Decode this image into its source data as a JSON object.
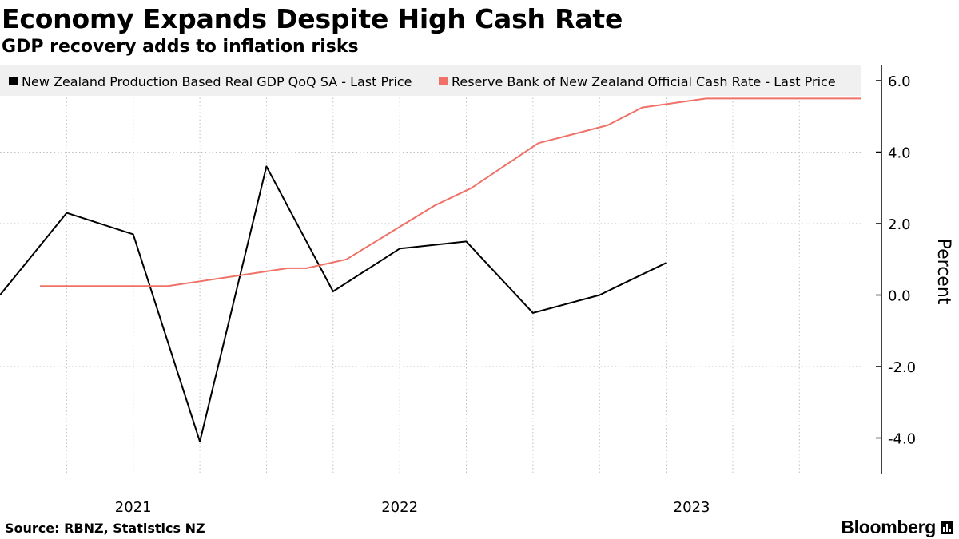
{
  "header": {
    "title": "Economy Expands Despite High Cash Rate",
    "subtitle": "GDP recovery adds to inflation risks"
  },
  "footer": {
    "source": "Source: RBNZ, Statistics NZ",
    "brand": "Bloomberg"
  },
  "colors": {
    "gdp": "#000000",
    "ocr": "#f07167",
    "grid": "#bfbfbf",
    "legend_bg": "#f0f0f0"
  },
  "chart_data": {
    "type": "line",
    "title": "Economy Expands Despite High Cash Rate",
    "subtitle": "GDP recovery adds to inflation risks",
    "ylabel": "Percent",
    "xlabel": "",
    "ylim": [
      -5,
      6.5
    ],
    "yticks": [
      6,
      4,
      2,
      0,
      -2,
      -4
    ],
    "ytick_labels": [
      "6.0",
      "4.0",
      "2.0",
      "0.0",
      "-2.0",
      "-4.0"
    ],
    "y_axis_side": "right",
    "x_range": [
      2020.5,
      2023.73
    ],
    "x_tick_labels": [
      {
        "label": "2021",
        "x": 2021.0
      },
      {
        "label": "2022",
        "x": 2022.0
      },
      {
        "label": "2023",
        "x": 2023.0
      }
    ],
    "x_gridlines": [
      2020.75,
      2021.0,
      2021.25,
      2021.5,
      2021.75,
      2022.0,
      2022.25,
      2022.5,
      2022.75,
      2023.0,
      2023.25,
      2023.5
    ],
    "grid": true,
    "legend_position": "top",
    "series": [
      {
        "name": "New Zealand Production Based Real GDP QoQ SA - Last Price",
        "color": "#000000",
        "points": [
          {
            "x": 2020.5,
            "y": 0.0
          },
          {
            "x": 2020.75,
            "y": 2.3
          },
          {
            "x": 2021.0,
            "y": 1.7
          },
          {
            "x": 2021.25,
            "y": -4.1
          },
          {
            "x": 2021.5,
            "y": 3.6
          },
          {
            "x": 2021.75,
            "y": 0.1
          },
          {
            "x": 2022.0,
            "y": 1.3
          },
          {
            "x": 2022.25,
            "y": 1.5
          },
          {
            "x": 2022.5,
            "y": -0.5
          },
          {
            "x": 2022.75,
            "y": 0.0
          },
          {
            "x": 2023.0,
            "y": 0.9
          }
        ]
      },
      {
        "name": "Reserve Bank of New Zealand Official Cash Rate - Last Price",
        "color": "#f07167",
        "points": [
          {
            "x": 2020.65,
            "y": 0.25
          },
          {
            "x": 2021.13,
            "y": 0.25
          },
          {
            "x": 2021.58,
            "y": 0.75
          },
          {
            "x": 2021.65,
            "y": 0.75
          },
          {
            "x": 2021.8,
            "y": 1.0
          },
          {
            "x": 2022.02,
            "y": 2.0
          },
          {
            "x": 2022.13,
            "y": 2.5
          },
          {
            "x": 2022.27,
            "y": 3.0
          },
          {
            "x": 2022.37,
            "y": 3.5
          },
          {
            "x": 2022.52,
            "y": 4.25
          },
          {
            "x": 2022.65,
            "y": 4.5
          },
          {
            "x": 2022.78,
            "y": 4.75
          },
          {
            "x": 2022.91,
            "y": 5.25
          },
          {
            "x": 2023.15,
            "y": 5.5
          },
          {
            "x": 2023.73,
            "y": 5.5
          }
        ]
      }
    ]
  }
}
